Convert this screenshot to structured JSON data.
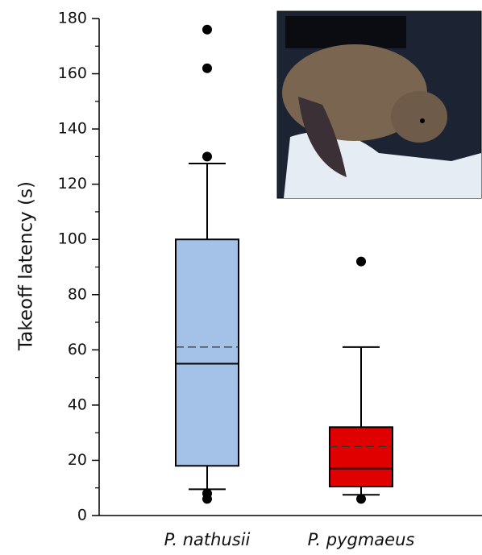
{
  "chart_data": {
    "type": "box",
    "ylabel": "Takeoff latency (s)",
    "categories": [
      "P. nathusii",
      "P. pygmaeus"
    ],
    "boxes": [
      {
        "color": "#a4c2e8",
        "whisker_low": 9.5,
        "q1": 18,
        "median": 55,
        "mean": 61,
        "q3": 100,
        "whisker_high": 127.5,
        "outliers": [
          176,
          162,
          130,
          8,
          6
        ]
      },
      {
        "color": "#e00000",
        "whisker_low": 7.5,
        "q1": 10.5,
        "median": 17,
        "mean": 25,
        "q3": 32,
        "whisker_high": 61,
        "outliers": [
          92,
          6
        ]
      }
    ],
    "ylim": [
      0,
      180
    ],
    "yticks": [
      0,
      20,
      40,
      60,
      80,
      100,
      120,
      140,
      160,
      180
    ],
    "yminorticks": [
      10,
      30,
      50,
      70,
      90,
      110,
      130,
      150,
      170
    ]
  }
}
